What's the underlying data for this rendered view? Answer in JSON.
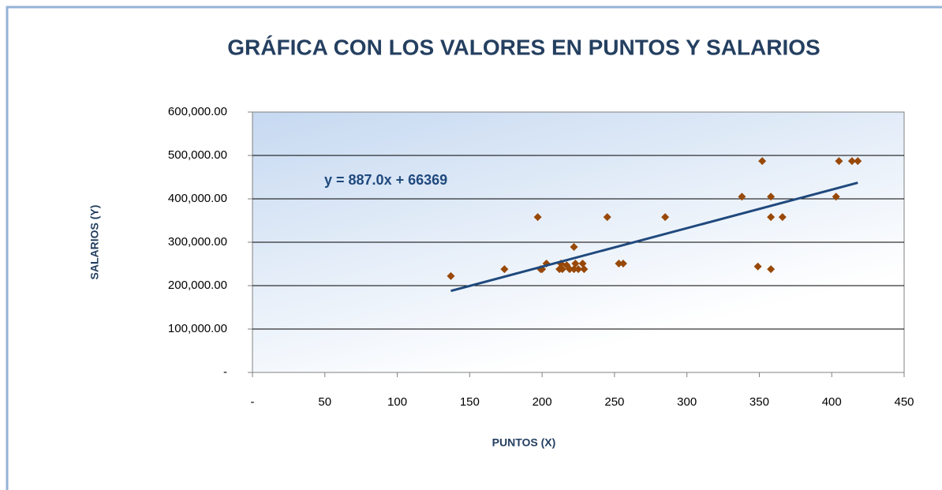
{
  "chart_data": {
    "type": "scatter",
    "title": "GRÁFICA CON LOS VALORES EN PUNTOS Y SALARIOS",
    "x_label": "PUNTOS (X)",
    "y_label": "SALARIOS (Y)",
    "color": "#984807",
    "x": [
      137,
      174,
      197,
      199,
      200,
      203,
      212,
      213,
      214,
      217,
      219,
      222,
      222,
      223,
      225,
      228,
      229,
      245,
      253,
      256,
      285,
      338,
      349,
      352,
      358,
      358,
      358,
      366,
      403,
      405,
      414,
      418
    ],
    "values": [
      222000,
      238000,
      358000,
      238000,
      238000,
      251000,
      238000,
      251000,
      238000,
      247000,
      238000,
      289000,
      238000,
      251000,
      238000,
      251000,
      238000,
      358000,
      251000,
      251000,
      358000,
      405000,
      244000,
      487000,
      405000,
      358000,
      238000,
      358000,
      405000,
      487000,
      487000,
      487000
    ],
    "trendline": {
      "slope": 887.0,
      "intercept": 66369,
      "label": "y = 887.0x + 66369",
      "color": "#1f497d"
    },
    "xlim": [
      0,
      450
    ],
    "xticks": [
      {
        "value": 0,
        "label": "-"
      },
      50,
      100,
      150,
      200,
      250,
      300,
      350,
      400,
      450
    ],
    "ylim": [
      0,
      600000
    ],
    "yticks": [
      {
        "value": 0,
        "label": "-"
      },
      {
        "value": 100000,
        "label": "100,000.00"
      },
      {
        "value": 200000,
        "label": "200,000.00"
      },
      {
        "value": 300000,
        "label": "300,000.00"
      },
      {
        "value": 400000,
        "label": "400,000.00"
      },
      {
        "value": 500000,
        "label": "500,000.00"
      },
      {
        "value": 600000,
        "label": "600,000.00"
      }
    ],
    "grid": true
  }
}
